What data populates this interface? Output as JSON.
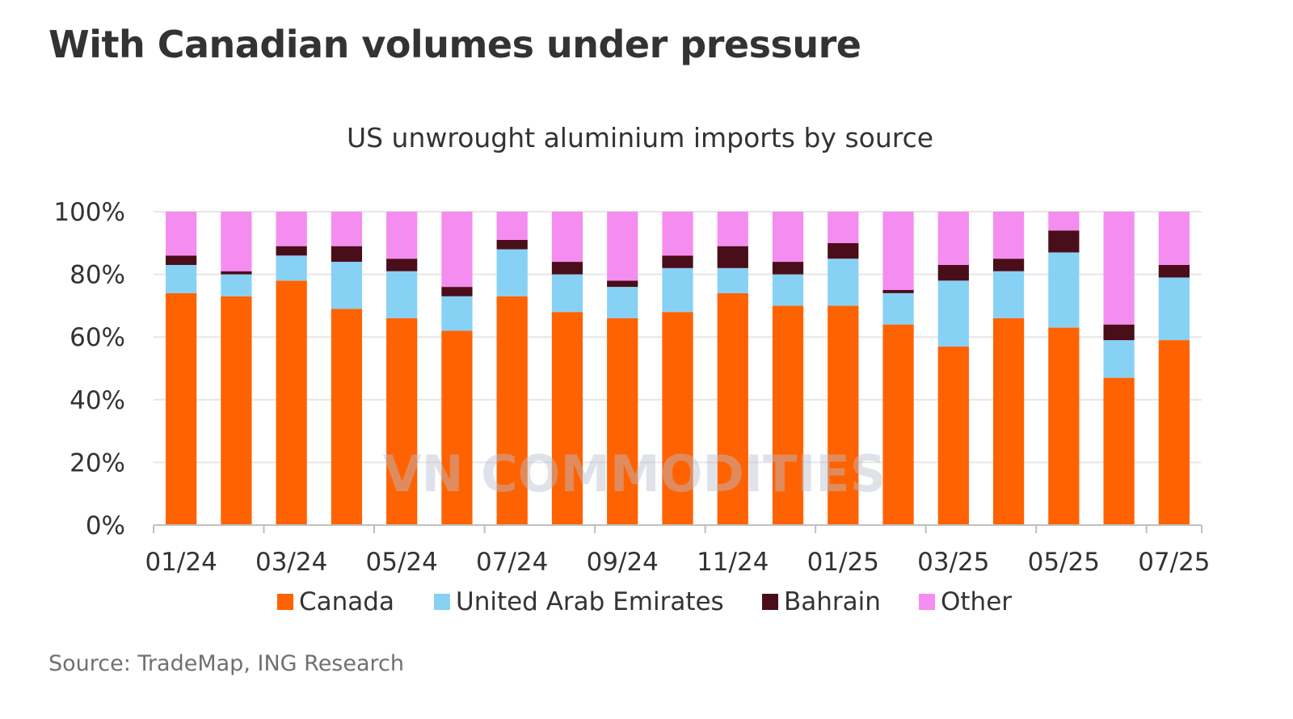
{
  "headline": "With Canadian volumes under pressure",
  "source": "Source: TradeMap, ING Research",
  "watermark": "VN COMMODITIES",
  "colors": {
    "Canada": "#ff6200",
    "United Arab Emirates": "#87d1f5",
    "Bahrain": "#4a0d1a",
    "Other": "#f58df0",
    "grid": "#e6e6e6",
    "axis": "#bfbfbf"
  },
  "chart_data": {
    "type": "bar",
    "stacked": true,
    "title": "US unwrought aluminium imports by source",
    "xlabel": "",
    "ylabel": "",
    "ylim": [
      0,
      100
    ],
    "yticks": [
      "0%",
      "20%",
      "40%",
      "60%",
      "80%",
      "100%"
    ],
    "categories": [
      "01/24",
      "02/24",
      "03/24",
      "04/24",
      "05/24",
      "06/24",
      "07/24",
      "08/24",
      "09/24",
      "10/24",
      "11/24",
      "12/24",
      "01/25",
      "02/25",
      "03/25",
      "04/25",
      "05/25",
      "06/25",
      "07/25"
    ],
    "xtick_labels": [
      "01/24",
      "03/24",
      "05/24",
      "07/24",
      "09/24",
      "11/24",
      "01/25",
      "03/25",
      "05/25",
      "07/25"
    ],
    "legend": "bottom",
    "grid": true,
    "series": [
      {
        "name": "Canada",
        "values": [
          74,
          73,
          78,
          69,
          66,
          62,
          73,
          68,
          66,
          68,
          74,
          70,
          70,
          64,
          57,
          66,
          63,
          47,
          59
        ]
      },
      {
        "name": "United Arab Emirates",
        "values": [
          9,
          7,
          8,
          15,
          15,
          11,
          15,
          12,
          10,
          14,
          8,
          10,
          15,
          10,
          21,
          15,
          24,
          12,
          20
        ]
      },
      {
        "name": "Bahrain",
        "values": [
          3,
          1,
          3,
          5,
          4,
          3,
          3,
          4,
          2,
          4,
          7,
          4,
          5,
          1,
          5,
          4,
          7,
          5,
          4
        ]
      },
      {
        "name": "Other",
        "values": [
          14,
          19,
          11,
          11,
          15,
          24,
          9,
          16,
          22,
          14,
          11,
          16,
          10,
          25,
          17,
          15,
          6,
          36,
          17
        ]
      }
    ]
  }
}
